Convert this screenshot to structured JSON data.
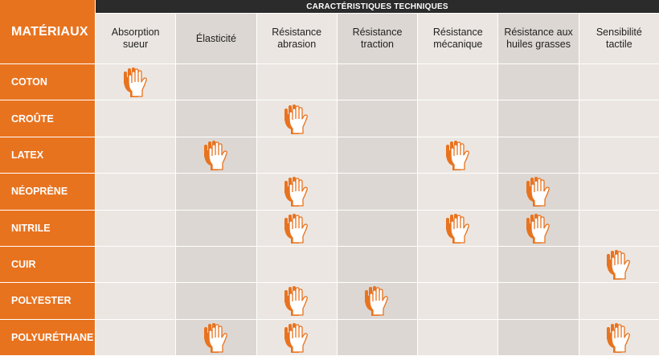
{
  "header": {
    "title": "CARACTÉRISTIQUES TECHNIQUES",
    "row_label": "MATÉRIAUX"
  },
  "columns": [
    "Absorption\nsueur",
    "Élasticité",
    "Résistance\nabrasion",
    "Résistance\ntraction",
    "Résistance\nmécanique",
    "Résistance aux\nhuiles grasses",
    "Sensibilité\ntactile"
  ],
  "materials": [
    {
      "name": "COTON",
      "marks": [
        1,
        0,
        0,
        0,
        0,
        0,
        0
      ]
    },
    {
      "name": "CROÛTE",
      "marks": [
        0,
        0,
        1,
        0,
        0,
        0,
        0
      ]
    },
    {
      "name": "LATEX",
      "marks": [
        0,
        1,
        0,
        0,
        1,
        0,
        0
      ]
    },
    {
      "name": "NÉOPRÈNE",
      "marks": [
        0,
        0,
        1,
        0,
        0,
        1,
        0
      ]
    },
    {
      "name": "NITRILE",
      "marks": [
        0,
        0,
        1,
        0,
        1,
        1,
        0
      ]
    },
    {
      "name": "CUIR",
      "marks": [
        0,
        0,
        0,
        0,
        0,
        0,
        1
      ]
    },
    {
      "name": "POLYESTER",
      "marks": [
        0,
        0,
        1,
        1,
        0,
        0,
        0
      ]
    },
    {
      "name": "POLYURÉTHANE",
      "marks": [
        0,
        1,
        1,
        0,
        0,
        0,
        1
      ]
    }
  ],
  "mark_icon": "glove-icon",
  "colors": {
    "accent": "#e8731f",
    "header_band": "#2b2b2b",
    "cell_light": "#ebe6e1",
    "cell_dark": "#dcd7d2"
  }
}
